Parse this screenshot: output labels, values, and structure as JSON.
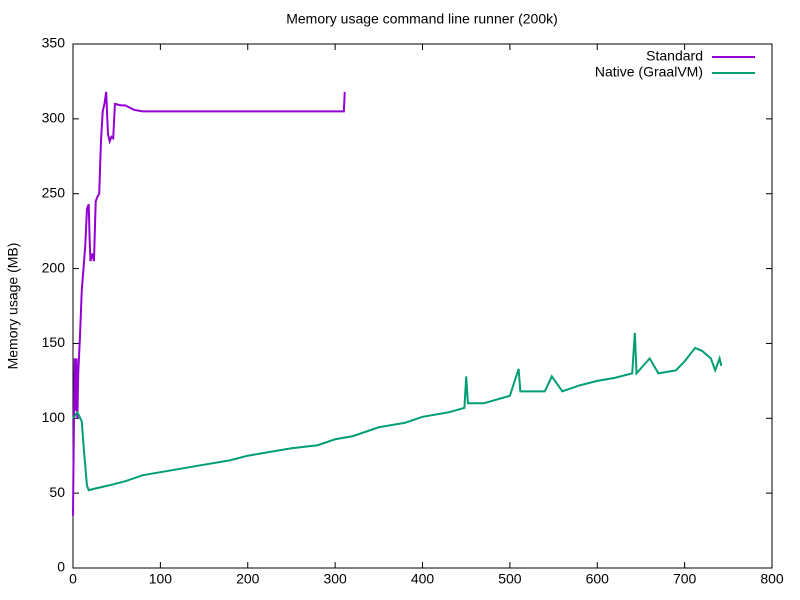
{
  "chart_data": {
    "type": "line",
    "title": "Memory usage command line runner (200k)",
    "y_label": "Memory usage (MB)",
    "xlim": [
      0,
      800
    ],
    "xticks": [
      0,
      100,
      200,
      300,
      400,
      500,
      600,
      700,
      800
    ],
    "ylim": [
      0,
      350
    ],
    "yticks": [
      0,
      50,
      100,
      150,
      200,
      250,
      300,
      350
    ],
    "legend": "top-right",
    "series": [
      {
        "name": "Standard",
        "color": "#9400d3",
        "x": [
          0,
          1,
          2,
          3,
          4,
          5,
          6,
          8,
          10,
          12,
          14,
          16,
          18,
          19,
          20,
          22,
          24,
          26,
          28,
          30,
          32,
          34,
          36,
          38,
          40,
          42,
          44,
          46,
          48,
          55,
          60,
          70,
          80,
          100,
          150,
          200,
          250,
          300,
          310,
          311
        ],
        "values": [
          35,
          95,
          140,
          105,
          140,
          100,
          130,
          155,
          185,
          200,
          215,
          240,
          243,
          220,
          205,
          210,
          205,
          245,
          248,
          250,
          285,
          305,
          310,
          318,
          290,
          285,
          288,
          287,
          310,
          309,
          309,
          306,
          305,
          305,
          305,
          305,
          305,
          305,
          305,
          318
        ]
      },
      {
        "name": "Native (GraalVM)",
        "color": "#009e73",
        "x": [
          0,
          5,
          10,
          13,
          16,
          18,
          25,
          40,
          60,
          80,
          100,
          120,
          150,
          180,
          200,
          250,
          280,
          300,
          320,
          350,
          380,
          400,
          430,
          448,
          450,
          452,
          470,
          500,
          510,
          512,
          540,
          548,
          560,
          580,
          600,
          620,
          640,
          643,
          645,
          660,
          670,
          690,
          700,
          712,
          720,
          730,
          735,
          740,
          742
        ],
        "values": [
          100,
          104,
          98,
          75,
          55,
          52,
          53,
          55,
          58,
          62,
          64,
          66,
          69,
          72,
          75,
          80,
          82,
          86,
          88,
          94,
          97,
          101,
          104,
          107,
          128,
          110,
          110,
          115,
          133,
          118,
          118,
          128,
          118,
          122,
          125,
          127,
          130,
          157,
          130,
          140,
          130,
          132,
          138,
          147,
          145,
          140,
          132,
          140,
          135
        ]
      }
    ]
  }
}
